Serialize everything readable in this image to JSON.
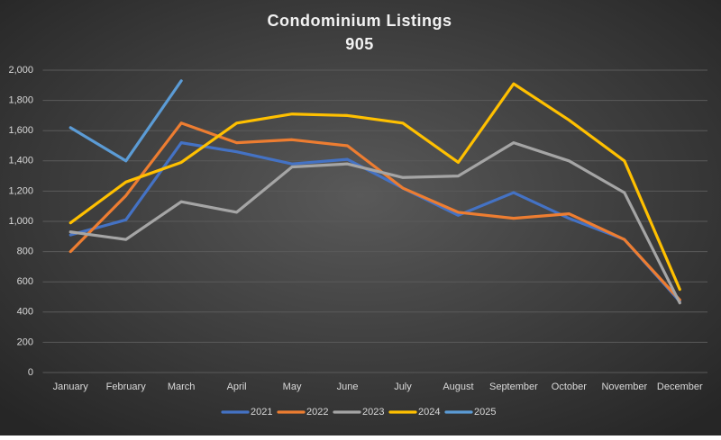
{
  "chart_data": {
    "type": "line",
    "title": "Condominium  Listings",
    "subtitle": "905",
    "categories": [
      "January",
      "February",
      "March",
      "April",
      "May",
      "June",
      "July",
      "August",
      "September",
      "October",
      "November",
      "December"
    ],
    "series": [
      {
        "name": "2021",
        "color": "#4472c4",
        "values": [
          910,
          1010,
          1520,
          1460,
          1380,
          1410,
          1220,
          1040,
          1190,
          1020,
          880,
          470
        ]
      },
      {
        "name": "2022",
        "color": "#ed7d31",
        "values": [
          800,
          1170,
          1650,
          1520,
          1540,
          1500,
          1220,
          1060,
          1020,
          1050,
          880,
          480
        ]
      },
      {
        "name": "2023",
        "color": "#a5a5a5",
        "values": [
          930,
          880,
          1130,
          1060,
          1360,
          1380,
          1290,
          1300,
          1520,
          1400,
          1190,
          460
        ]
      },
      {
        "name": "2024",
        "color": "#ffc000",
        "values": [
          990,
          1260,
          1390,
          1650,
          1710,
          1700,
          1650,
          1390,
          1910,
          1670,
          1400,
          550
        ]
      },
      {
        "name": "2025",
        "color": "#5b9bd5",
        "values": [
          1620,
          1400,
          1930,
          null,
          null,
          null,
          null,
          null,
          null,
          null,
          null,
          null
        ]
      }
    ],
    "ylim": [
      0,
      2000
    ],
    "yticks": [
      0,
      200,
      400,
      600,
      800,
      {
        "value": 1000,
        "label": "1,000"
      },
      {
        "value": 1200,
        "label": "1,200"
      },
      {
        "value": 1400,
        "label": "1,400"
      },
      {
        "value": 1600,
        "label": "1,600"
      },
      {
        "value": 1800,
        "label": "1,800"
      },
      {
        "value": 2000,
        "label": "2,000"
      }
    ],
    "grid": true,
    "legend": "bottom"
  }
}
